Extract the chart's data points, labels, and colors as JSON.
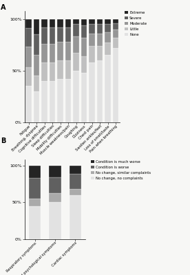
{
  "panel_a": {
    "categories": [
      "Fatigue",
      "Breathing, dyspnea",
      "Cognitive difficulties",
      "Sleep difficulties",
      "Mobility difficulties",
      "Muscle weakness/pain",
      "Coughing",
      "Dizziness",
      "Chest pain",
      "Swollen ankles/feet",
      "Loss of smell/taste",
      "Pain when breathing"
    ],
    "segments": {
      "None": [
        35,
        30,
        40,
        40,
        42,
        42,
        50,
        48,
        58,
        60,
        65,
        72
      ],
      "Little": [
        18,
        15,
        18,
        18,
        18,
        18,
        17,
        16,
        16,
        14,
        12,
        10
      ],
      "Moderate": [
        20,
        20,
        18,
        18,
        18,
        18,
        16,
        18,
        12,
        12,
        10,
        8
      ],
      "Severe": [
        18,
        20,
        16,
        16,
        14,
        14,
        12,
        12,
        9,
        9,
        8,
        6
      ],
      "Extreme": [
        9,
        15,
        8,
        8,
        8,
        8,
        5,
        6,
        5,
        5,
        5,
        4
      ]
    },
    "colors": {
      "None": "#e2e2e2",
      "Little": "#c0c0c0",
      "Moderate": "#969696",
      "Severe": "#606060",
      "Extreme": "#242424"
    },
    "legend_labels": [
      "Extreme",
      "Severe",
      "Moderate",
      "Little",
      "None"
    ],
    "yticks": [
      0,
      50,
      100
    ],
    "yticklabels": [
      "0%",
      "50%",
      "100%"
    ]
  },
  "panel_b": {
    "categories": [
      "Respiratory symptoms",
      "Mental and psychological symptoms",
      "Cardiac symptoms"
    ],
    "segments": {
      "No change, no complaints": [
        45,
        50,
        60
      ],
      "No change, similar complaints": [
        10,
        12,
        8
      ],
      "Condition is worse": [
        28,
        22,
        20
      ],
      "Condition is much worse": [
        17,
        16,
        12
      ]
    },
    "colors": {
      "No change, no complaints": "#e2e2e2",
      "No change, similar complaints": "#aaaaaa",
      "Condition is worse": "#606060",
      "Condition is much worse": "#242424"
    },
    "legend_labels": [
      "Condition is much worse",
      "Condition is worse",
      "No change, similar complaints",
      "No change, no complaints"
    ],
    "yticks": [
      0,
      50,
      100
    ],
    "yticklabels": [
      "0%",
      "50%",
      "100%"
    ]
  },
  "figure": {
    "bg_color": "#f7f7f5",
    "panel_a_label": "A",
    "panel_b_label": "B"
  }
}
